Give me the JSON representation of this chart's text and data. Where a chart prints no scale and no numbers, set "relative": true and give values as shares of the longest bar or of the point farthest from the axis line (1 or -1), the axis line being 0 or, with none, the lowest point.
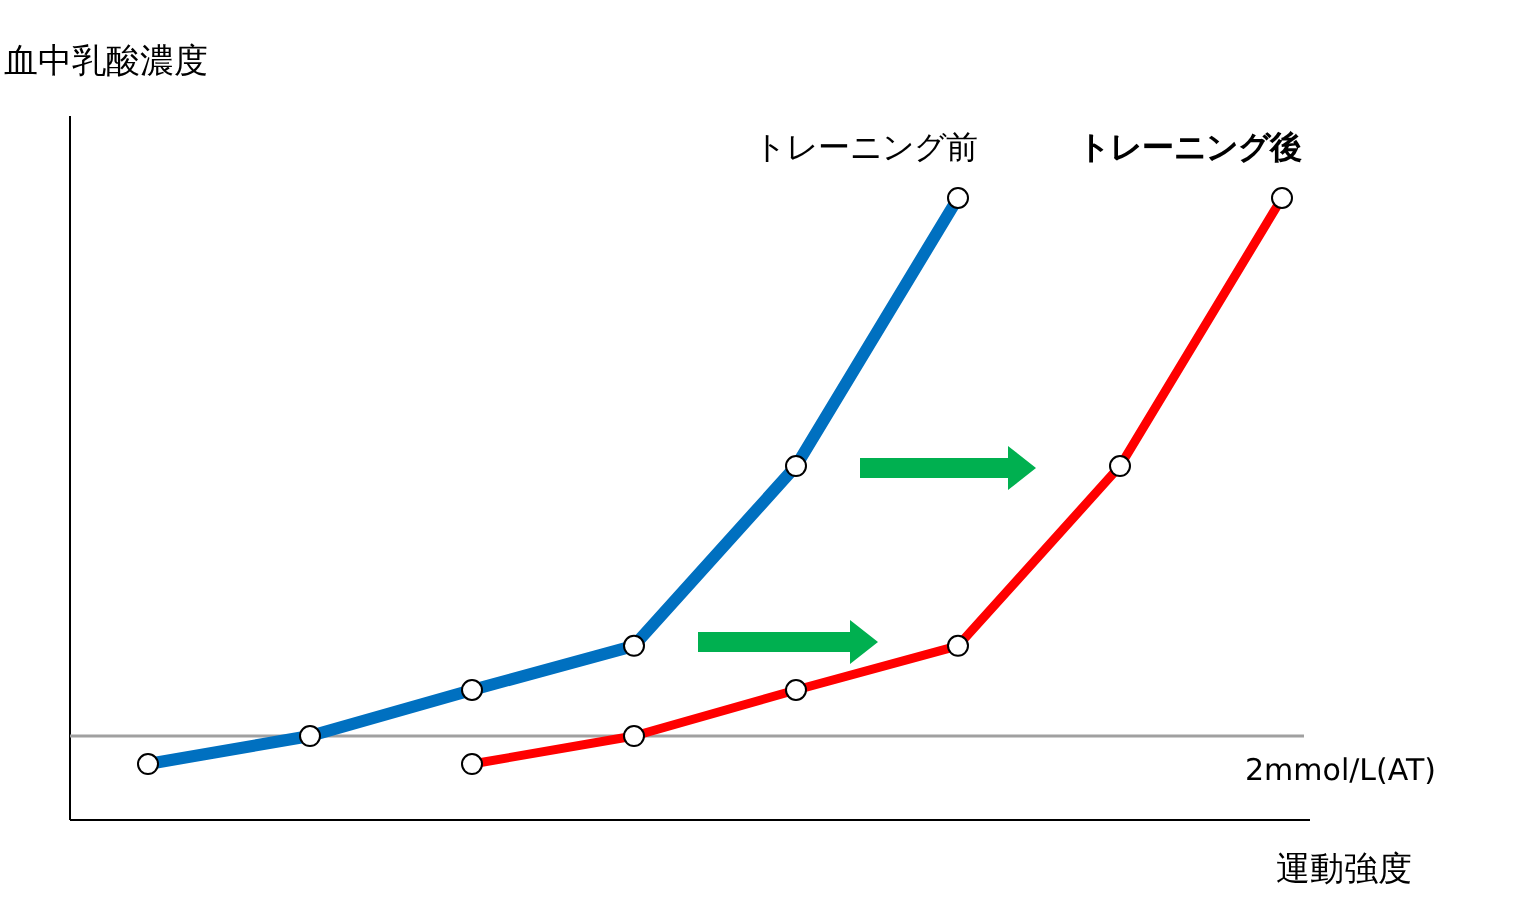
{
  "chart_data": {
    "type": "line",
    "relative": true,
    "ylabel": "血中乳酸濃度",
    "xlabel": "運動強度",
    "marker": "circle",
    "categories": [
      null,
      null,
      null,
      null,
      null,
      null,
      null,
      null
    ],
    "series": [
      {
        "name": "トレーニング前",
        "color": "#0070c0",
        "values": [
          0.09,
          0.135,
          0.209,
          0.28,
          0.569,
          1,
          null,
          null
        ]
      },
      {
        "name": "トレーニング後",
        "color": "#ff0000",
        "values": [
          null,
          null,
          0.09,
          0.135,
          0.209,
          0.28,
          0.569,
          1
        ]
      }
    ],
    "ref_lines": [
      {
        "axis": "y",
        "value": 0.135,
        "label": "2mmol/L(AT)",
        "color": "#a0a0a0"
      }
    ]
  }
}
